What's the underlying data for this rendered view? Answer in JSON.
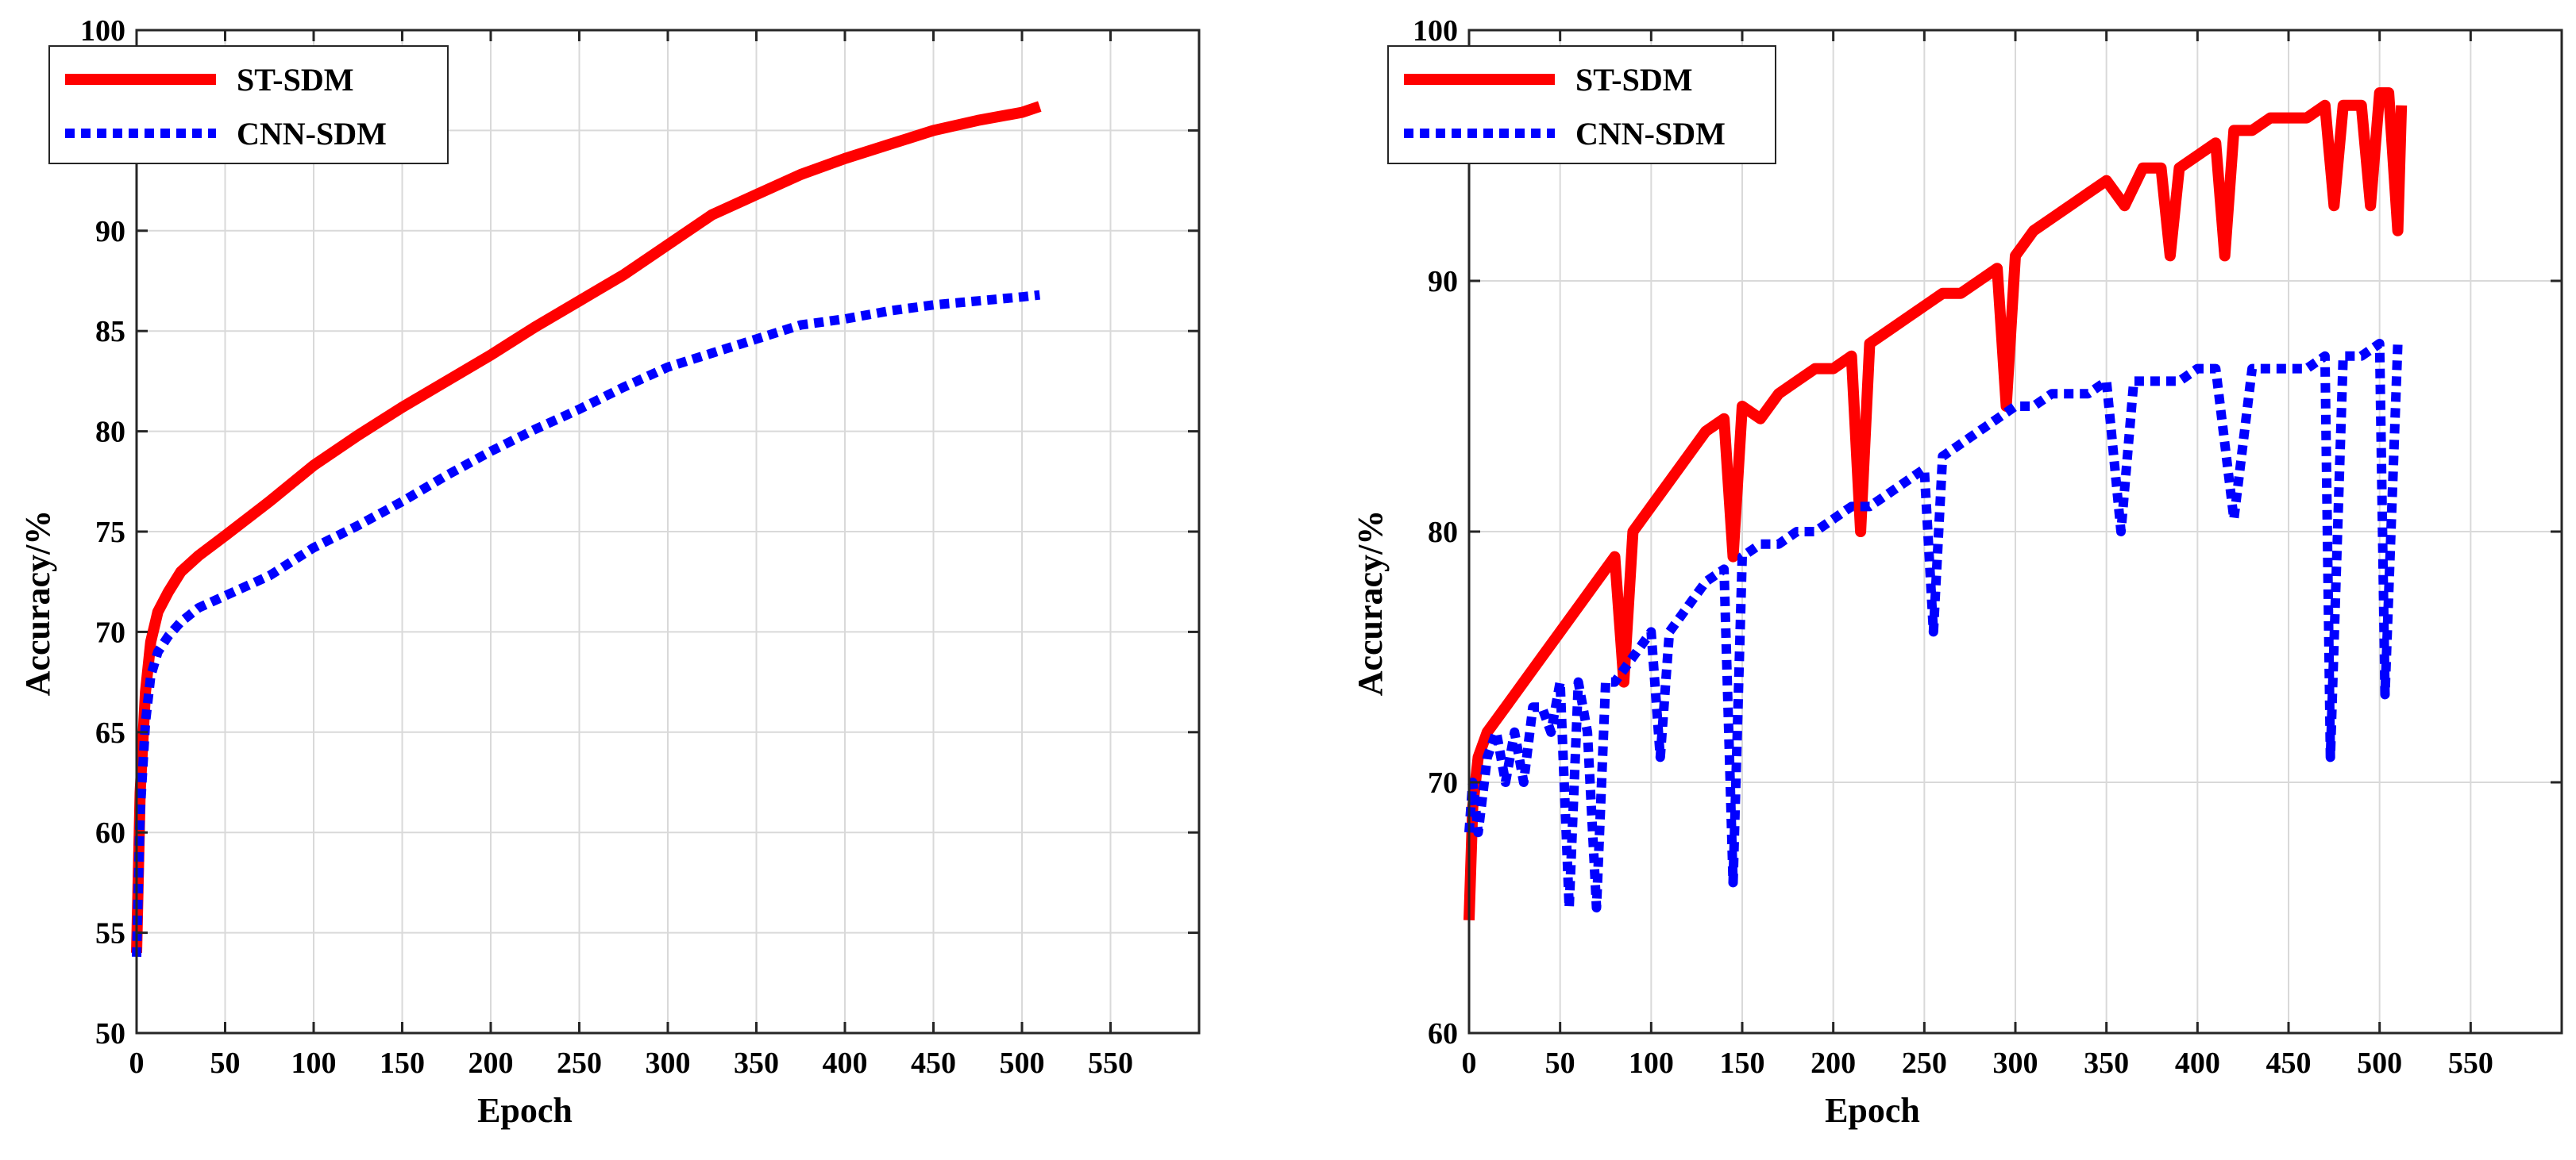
{
  "chart_data": [
    {
      "type": "line",
      "title": "",
      "xlabel": "Epoch",
      "ylabel": "Accuracy/%",
      "xlim": [
        0,
        600
      ],
      "ylim": [
        50,
        100
      ],
      "x_ticks": [
        0,
        50,
        100,
        150,
        200,
        250,
        300,
        350,
        400,
        450,
        500,
        550
      ],
      "y_ticks": [
        50,
        55,
        60,
        65,
        70,
        75,
        80,
        85,
        90,
        95,
        100
      ],
      "tick_labels_y": [
        "50",
        "55",
        "60",
        "65",
        "70",
        "75",
        "80",
        "85",
        "90",
        "",
        "100"
      ],
      "grid": true,
      "legend_position": "top-left",
      "series": [
        {
          "name": "ST-SDM",
          "color": "#ff0000",
          "style": "solid",
          "x": [
            0,
            2,
            5,
            8,
            12,
            18,
            25,
            35,
            50,
            75,
            100,
            125,
            150,
            175,
            200,
            225,
            250,
            275,
            300,
            325,
            350,
            375,
            400,
            425,
            450,
            475,
            500,
            510
          ],
          "y": [
            54,
            62,
            67,
            69.5,
            71,
            72,
            73,
            73.8,
            74.8,
            76.5,
            78.3,
            79.8,
            81.2,
            82.5,
            83.8,
            85.2,
            86.5,
            87.8,
            89.3,
            90.8,
            91.8,
            92.8,
            93.6,
            94.3,
            95,
            95.5,
            95.9,
            96.2
          ]
        },
        {
          "name": "CNN-SDM",
          "color": "#0000ff",
          "style": "dotted",
          "x": [
            0,
            2,
            5,
            8,
            12,
            18,
            25,
            35,
            50,
            75,
            100,
            125,
            150,
            175,
            200,
            225,
            250,
            275,
            300,
            325,
            350,
            375,
            400,
            425,
            450,
            475,
            500,
            510
          ],
          "y": [
            53.8,
            61,
            65.5,
            67.8,
            69,
            69.8,
            70.5,
            71.2,
            71.8,
            72.8,
            74.2,
            75.3,
            76.5,
            77.8,
            79,
            80.1,
            81.1,
            82.2,
            83.2,
            83.9,
            84.6,
            85.3,
            85.6,
            86,
            86.3,
            86.5,
            86.7,
            86.8
          ]
        }
      ]
    },
    {
      "type": "line",
      "title": "",
      "xlabel": "Epoch",
      "ylabel": "Accuracy/%",
      "xlim": [
        0,
        600
      ],
      "ylim": [
        60,
        100
      ],
      "x_ticks": [
        0,
        50,
        100,
        150,
        200,
        250,
        300,
        350,
        400,
        450,
        500,
        550
      ],
      "y_ticks": [
        60,
        70,
        80,
        90,
        100
      ],
      "grid": true,
      "legend_position": "top-left",
      "series": [
        {
          "name": "ST-SDM",
          "color": "#ff0000",
          "style": "solid",
          "x": [
            0,
            2,
            5,
            10,
            20,
            30,
            40,
            50,
            60,
            70,
            80,
            85,
            90,
            100,
            110,
            120,
            130,
            140,
            145,
            150,
            160,
            170,
            180,
            190,
            200,
            210,
            215,
            220,
            230,
            240,
            250,
            260,
            270,
            280,
            290,
            295,
            300,
            310,
            320,
            330,
            340,
            350,
            360,
            370,
            380,
            385,
            390,
            400,
            410,
            415,
            420,
            430,
            440,
            450,
            460,
            470,
            475,
            480,
            490,
            495,
            500,
            505,
            510,
            512
          ],
          "y": [
            64.5,
            69,
            71,
            72,
            73,
            74,
            75,
            76,
            77,
            78,
            79,
            74,
            80,
            81,
            82,
            83,
            84,
            84.5,
            79,
            85,
            84.5,
            85.5,
            86,
            86.5,
            86.5,
            87,
            80,
            87.5,
            88,
            88.5,
            89,
            89.5,
            89.5,
            90,
            90.5,
            85,
            91,
            92,
            92.5,
            93,
            93.5,
            94,
            93,
            94.5,
            94.5,
            91,
            94.5,
            95,
            95.5,
            91,
            96,
            96,
            96.5,
            96.5,
            96.5,
            97,
            93,
            97,
            97,
            93,
            97.5,
            97.5,
            92,
            97
          ]
        },
        {
          "name": "CNN-SDM",
          "color": "#0000ff",
          "style": "dotted",
          "x": [
            0,
            2,
            5,
            10,
            15,
            20,
            25,
            30,
            35,
            40,
            45,
            50,
            55,
            60,
            65,
            70,
            75,
            80,
            90,
            100,
            105,
            110,
            120,
            130,
            140,
            145,
            150,
            160,
            170,
            180,
            190,
            200,
            210,
            220,
            230,
            240,
            250,
            255,
            260,
            270,
            280,
            290,
            300,
            310,
            320,
            330,
            340,
            350,
            358,
            365,
            370,
            380,
            390,
            400,
            410,
            420,
            430,
            440,
            450,
            460,
            470,
            473,
            480,
            490,
            500,
            503,
            510,
            512
          ],
          "y": [
            68,
            70,
            68,
            71,
            72,
            70,
            72,
            70,
            73,
            73,
            72,
            74,
            65,
            74,
            72,
            65,
            74,
            74,
            75,
            76,
            71,
            76,
            77,
            78,
            78.5,
            66,
            79,
            79.5,
            79.5,
            80,
            80,
            80.5,
            81,
            81,
            81.5,
            82,
            82.5,
            76,
            83,
            83.5,
            84,
            84.5,
            85,
            85,
            85.5,
            85.5,
            85.5,
            86,
            80,
            86,
            86,
            86,
            86,
            86.5,
            86.5,
            80.5,
            86.5,
            86.5,
            86.5,
            86.5,
            87,
            71,
            87,
            87,
            87.5,
            73.5,
            87.5,
            87.5
          ]
        }
      ]
    }
  ]
}
